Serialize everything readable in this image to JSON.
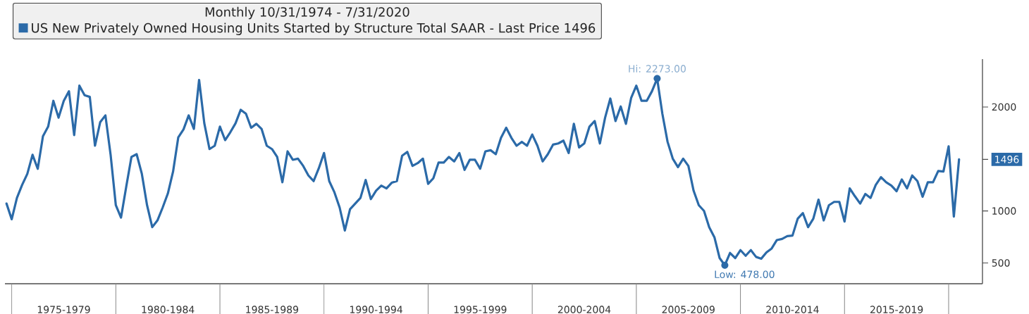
{
  "chart_data": {
    "type": "line",
    "title": "Monthly 10/31/1974 - 7/31/2020",
    "legend": "top left",
    "categories": [
      null,
      null,
      null,
      null,
      null,
      null,
      null,
      null,
      null,
      null,
      null,
      "1975-1979",
      null,
      null,
      null,
      null,
      null,
      null,
      null,
      null,
      null,
      null,
      null,
      null,
      null,
      null,
      null,
      null,
      null,
      null,
      null,
      "1980-1984",
      null,
      null,
      null,
      null,
      null,
      null,
      null,
      null,
      null,
      null,
      null,
      null,
      null,
      null,
      null,
      null,
      null,
      null,
      null,
      "1985-1989",
      null,
      null,
      null,
      null,
      null,
      null,
      null,
      null,
      null,
      null,
      null,
      null,
      null,
      null,
      null,
      null,
      null,
      null,
      null,
      "1990-1994",
      null,
      null,
      null,
      null,
      null,
      null,
      null,
      null,
      null,
      null,
      null,
      null,
      null,
      null,
      null,
      null,
      null,
      null,
      null,
      "1995-1999",
      null,
      null,
      null,
      null,
      null,
      null,
      null,
      null,
      null,
      null,
      null,
      null,
      null,
      null,
      null,
      null,
      null,
      null,
      null,
      "2000-2004",
      null,
      null,
      null,
      null,
      null,
      null,
      null,
      null,
      null,
      null,
      null,
      null,
      null,
      null,
      null,
      null,
      null,
      null,
      null,
      "2005-2009",
      null,
      null,
      null,
      null,
      null,
      null,
      null,
      null,
      null,
      null,
      null,
      null,
      null,
      null,
      null,
      null,
      null,
      null,
      null,
      "2010-2014",
      null,
      null,
      null,
      null,
      null,
      null,
      null,
      null,
      null,
      null,
      null,
      null,
      null,
      null,
      null,
      null,
      null,
      null,
      null,
      "2015-2019",
      null,
      null,
      null,
      null,
      null,
      null,
      null,
      null,
      null,
      null,
      null,
      null
    ],
    "series": [
      {
        "name": "US New Privately Owned Housing Units Started by Structure Total SAAR - Last Price 1496",
        "color": "#2b6aa8",
        "values": [
          1071,
          920,
          1125,
          1250,
          1357,
          1540,
          1405,
          1719,
          1811,
          2059,
          1897,
          2059,
          2151,
          1730,
          2205,
          2113,
          2097,
          1627,
          1854,
          1919,
          1540,
          1055,
          936,
          1233,
          1519,
          1546,
          1357,
          1055,
          844,
          909,
          1033,
          1168,
          1379,
          1708,
          1784,
          1919,
          1789,
          2260,
          1843,
          1595,
          1627,
          1811,
          1681,
          1757,
          1843,
          1973,
          1935,
          1800,
          1838,
          1789,
          1627,
          1595,
          1519,
          1276,
          1573,
          1492,
          1503,
          1433,
          1341,
          1287,
          1411,
          1557,
          1287,
          1179,
          1033,
          812,
          1017,
          1071,
          1125,
          1298,
          1114,
          1195,
          1244,
          1217,
          1271,
          1287,
          1530,
          1568,
          1433,
          1460,
          1503,
          1260,
          1314,
          1465,
          1465,
          1519,
          1476,
          1557,
          1395,
          1492,
          1492,
          1406,
          1573,
          1584,
          1546,
          1703,
          1800,
          1703,
          1627,
          1665,
          1627,
          1735,
          1627,
          1476,
          1546,
          1638,
          1649,
          1676,
          1557,
          1838,
          1611,
          1649,
          1811,
          1865,
          1649,
          1897,
          2081,
          1865,
          2005,
          1838,
          2086,
          2205,
          2059,
          2059,
          2151,
          2273,
          1935,
          1665,
          1503,
          1422,
          1503,
          1433,
          1195,
          1055,
          1001,
          844,
          747,
          547,
          478,
          596,
          547,
          623,
          569,
          623,
          558,
          541,
          601,
          639,
          720,
          731,
          758,
          763,
          925,
          979,
          844,
          925,
          1109,
          909,
          1055,
          1087,
          1087,
          898,
          1217,
          1141,
          1071,
          1163,
          1125,
          1250,
          1325,
          1276,
          1244,
          1190,
          1303,
          1217,
          1341,
          1287,
          1136,
          1276,
          1276,
          1384,
          1379,
          1622,
          946,
          1496
        ]
      }
    ],
    "ylim": [
      300,
      2460
    ],
    "yticks": [
      500,
      1000,
      {
        "value": 1496,
        "label": "1496"
      },
      2000
    ],
    "annotations": [
      {
        "text": "Hi: 2273.00",
        "y": 2273
      },
      "Low: 478.00"
    ]
  }
}
